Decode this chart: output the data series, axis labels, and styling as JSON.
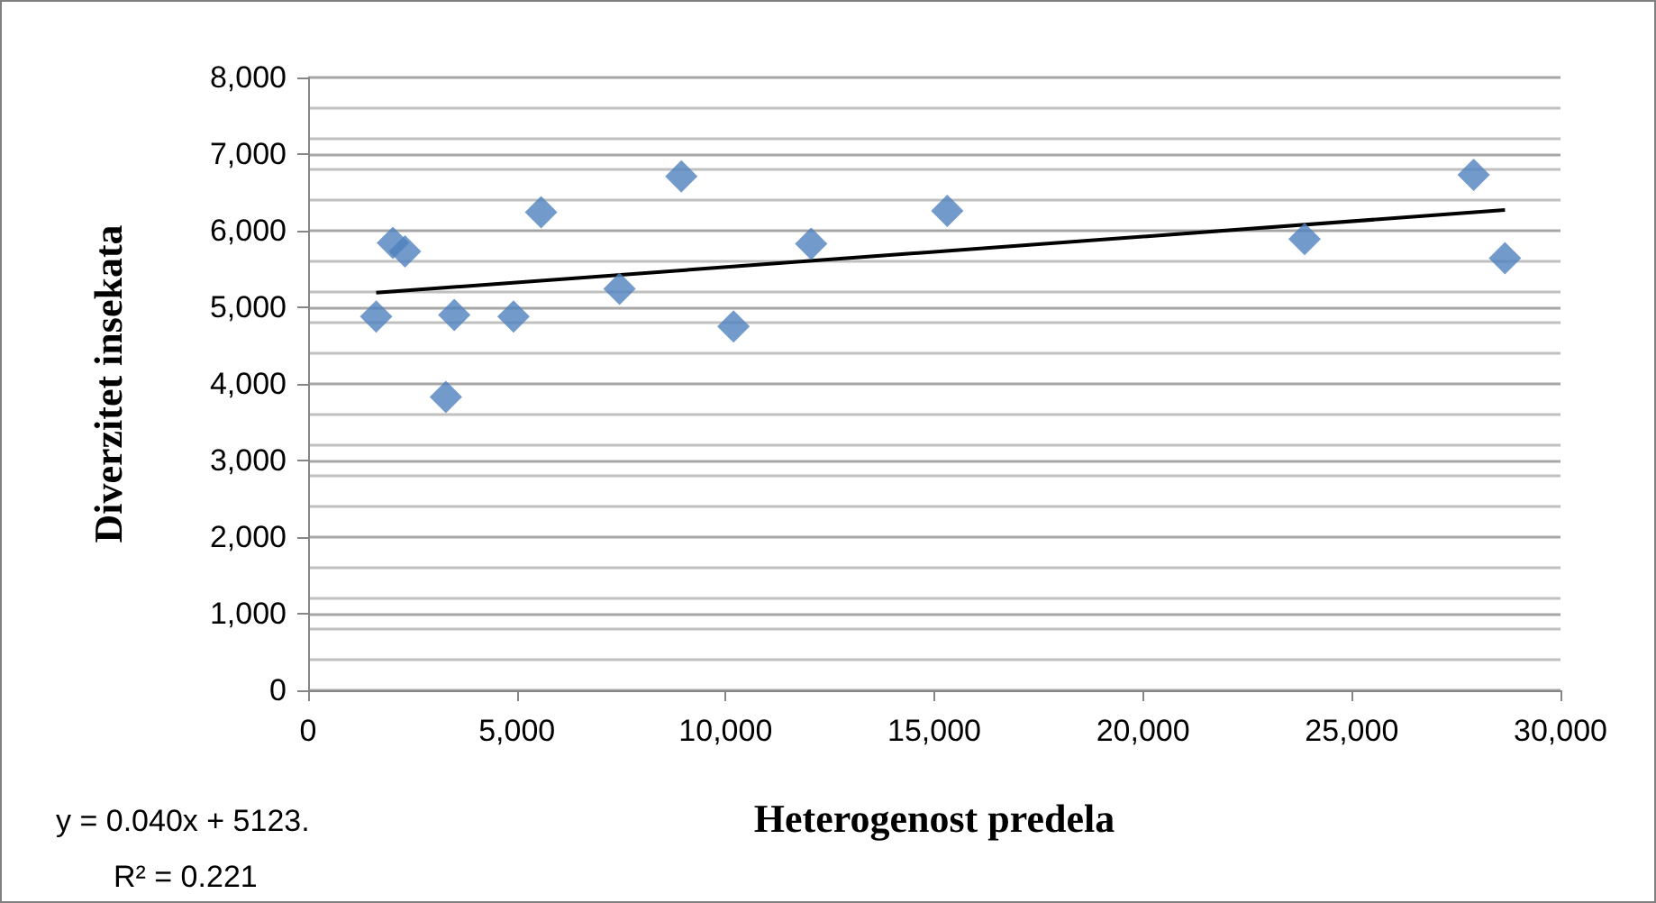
{
  "chart_data": {
    "type": "scatter",
    "xlabel": "Heterogenost predela",
    "ylabel": "Diverzitet insekata",
    "marker": "diamond",
    "grid": "y",
    "xlim": [
      0,
      30000
    ],
    "xticks": [
      0,
      {
        "value": 5000,
        "label": "5,000"
      },
      {
        "value": 10000,
        "label": "10,000"
      },
      {
        "value": 15000,
        "label": "15,000"
      },
      {
        "value": 20000,
        "label": "20,000"
      },
      {
        "value": 25000,
        "label": "25,000"
      },
      {
        "value": 30000,
        "label": "30,000"
      }
    ],
    "ylim": [
      0,
      8000
    ],
    "yticks": [
      0,
      {
        "value": 1000,
        "label": "1,000"
      },
      {
        "value": 2000,
        "label": "2,000"
      },
      {
        "value": 3000,
        "label": "3,000"
      },
      {
        "value": 4000,
        "label": "4,000"
      },
      {
        "value": 5000,
        "label": "5,000"
      },
      {
        "value": 6000,
        "label": "6,000"
      },
      {
        "value": 7000,
        "label": "7,000"
      },
      {
        "value": 8000,
        "label": "8,000"
      }
    ],
    "series": [
      {
        "color": "#4f81bd",
        "x": [
          1630,
          2030,
          2320,
          3300,
          3500,
          4920,
          5580,
          7460,
          8940,
          10190,
          12050,
          15310,
          23870,
          27920,
          28670
        ],
        "values": [
          4880,
          5840,
          5730,
          3830,
          4900,
          4880,
          6240,
          5240,
          6710,
          4750,
          5830,
          6260,
          5890,
          6730,
          5640
        ]
      },
      {
        "type": "line",
        "color": "#000000",
        "marker": "none",
        "x": [
          1630,
          28670
        ],
        "values": [
          5190,
          6270
        ]
      }
    ],
    "annotations": [
      "y = 0.040x + 5123.",
      "R² = 0.221"
    ]
  }
}
